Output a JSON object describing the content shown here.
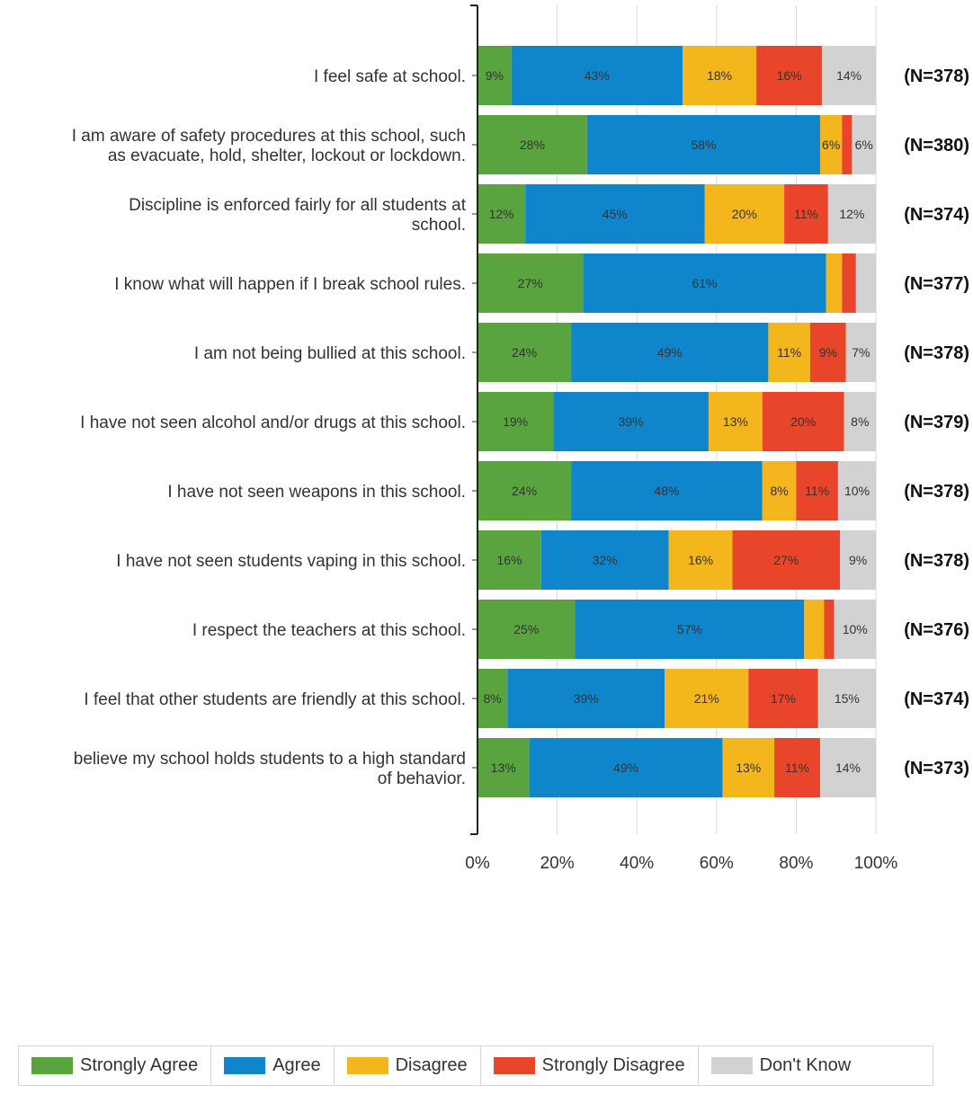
{
  "chart_data": {
    "type": "bar",
    "orientation": "horizontal",
    "stacked": "percent",
    "categories": [
      "I feel safe at school.",
      "I am aware of safety procedures at this school, such as evacuate, hold, shelter, lockout or lockdown.",
      "Discipline is enforced fairly for all students at school.",
      "I know what will happen if I break school rules.",
      "I am not being bullied at this school.",
      "I have not seen alcohol and/or drugs at this school.",
      "I have not seen weapons in this school.",
      "I have not seen students vaping in this school.",
      "I respect the teachers at this school.",
      "I feel that other students are friendly at this school.",
      "believe my school holds students to a high standard of behavior."
    ],
    "category_lines": [
      [
        "I feel safe at school."
      ],
      [
        "I am aware of safety procedures at this school, such",
        "as evacuate, hold, shelter, lockout or lockdown."
      ],
      [
        "Discipline is enforced fairly for all students at",
        "school."
      ],
      [
        "I know what will happen if I break school rules."
      ],
      [
        "I am not being bullied at this school."
      ],
      [
        "I have not seen alcohol and/or drugs at this school."
      ],
      [
        "I have not seen weapons in this school."
      ],
      [
        "I have not seen students vaping in this school."
      ],
      [
        "I respect the teachers at this school."
      ],
      [
        "I feel that other students are friendly at this school."
      ],
      [
        "believe my school holds students to a high standard",
        "of behavior."
      ]
    ],
    "n_labels": [
      "(N=378)",
      "(N=380)",
      "(N=374)",
      "(N=377)",
      "(N=378)",
      "(N=379)",
      "(N=378)",
      "(N=378)",
      "(N=376)",
      "(N=374)",
      "(N=373)"
    ],
    "series": [
      {
        "name": "Strongly Agree",
        "color": "#5aa43f",
        "values": [
          8.5,
          27.5,
          12,
          26.5,
          23.5,
          19,
          23.5,
          16,
          24.5,
          7.5,
          13
        ],
        "labels": [
          "9%",
          "28%",
          "12%",
          "27%",
          "24%",
          "19%",
          "24%",
          "16%",
          "25%",
          "8%",
          "13%"
        ]
      },
      {
        "name": "Agree",
        "color": "#0f86cc",
        "values": [
          43,
          58.5,
          45,
          61,
          49.5,
          39,
          48,
          32,
          57.5,
          39.5,
          48.5
        ],
        "labels": [
          "43%",
          "58%",
          "45%",
          "61%",
          "49%",
          "39%",
          "48%",
          "32%",
          "57%",
          "39%",
          "49%"
        ]
      },
      {
        "name": "Disagree",
        "color": "#f3b61c",
        "values": [
          18.5,
          5.5,
          20,
          4,
          10.5,
          13.5,
          8.5,
          16,
          5,
          21,
          13
        ],
        "labels": [
          "18%",
          "6%",
          "20%",
          "",
          "11%",
          "13%",
          "8%",
          "16%",
          "",
          "21%",
          "13%"
        ]
      },
      {
        "name": "Strongly Disagree",
        "color": "#e8452a",
        "values": [
          16.5,
          2.5,
          11,
          3.5,
          9,
          20.5,
          10.5,
          27,
          2.5,
          17.5,
          11.5
        ],
        "labels": [
          "16%",
          "",
          "11%",
          "",
          "9%",
          "20%",
          "11%",
          "27%",
          "",
          "17%",
          "11%"
        ]
      },
      {
        "name": "Don't Know",
        "color": "#d2d2d2",
        "values": [
          13.5,
          6,
          12,
          5,
          7.5,
          8,
          9.5,
          9,
          10.5,
          14.5,
          14
        ],
        "labels": [
          "14%",
          "6%",
          "12%",
          "",
          "7%",
          "8%",
          "10%",
          "9%",
          "10%",
          "15%",
          "14%"
        ]
      }
    ],
    "xlim": [
      0,
      100
    ],
    "x_ticks": [
      "0%",
      "20%",
      "40%",
      "60%",
      "80%",
      "100%"
    ],
    "grid": true,
    "legend_position": "bottom"
  },
  "legend": [
    {
      "label": "Strongly Agree",
      "color": "#5aa43f"
    },
    {
      "label": "Agree",
      "color": "#0f86cc"
    },
    {
      "label": "Disagree",
      "color": "#f3b61c"
    },
    {
      "label": "Strongly Disagree",
      "color": "#e8452a"
    },
    {
      "label": "Don't Know",
      "color": "#d2d2d2"
    }
  ]
}
